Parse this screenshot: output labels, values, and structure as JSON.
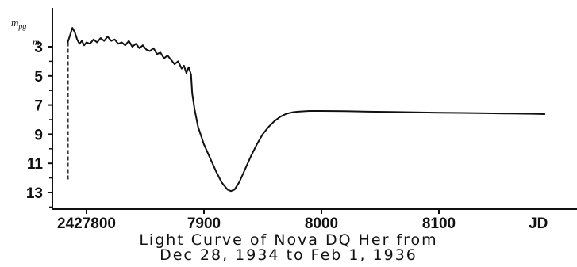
{
  "chart_data": {
    "type": "line",
    "title_lines": [
      "Light Curve of Nova DQ Her from",
      "Dec 28, 1934 to Feb 1, 1936"
    ],
    "xlabel": "JD",
    "ylabel": "m_pg",
    "ylabel_main": "m",
    "ylabel_sub": "pg",
    "y_unit_mark": "m",
    "xlim": [
      27800,
      8190
    ],
    "xlim_data": [
      27780,
      28190
    ],
    "ylim_inverted": [
      1.1,
      14.3
    ],
    "y_reversed": true,
    "x_ticks": [
      {
        "value": 27800,
        "label": "2427800"
      },
      {
        "value": 27900,
        "label": "7900"
      },
      {
        "value": 28000,
        "label": "8000"
      },
      {
        "value": 28100,
        "label": "8100"
      }
    ],
    "y_ticks": [
      {
        "value": 3,
        "label": "3"
      },
      {
        "value": 5,
        "label": "5"
      },
      {
        "value": 7,
        "label": "7"
      },
      {
        "value": 9,
        "label": "9"
      },
      {
        "value": 11,
        "label": "11"
      },
      {
        "value": 13,
        "label": "13"
      }
    ],
    "pre_discovery_dashed": [
      {
        "x": 27784,
        "y": 12.1
      },
      {
        "x": 27784,
        "y": 2.7
      }
    ],
    "series": [
      {
        "style": "solid",
        "points": [
          [
            27784,
            2.7
          ],
          [
            27786,
            2.2
          ],
          [
            27788,
            1.7
          ],
          [
            27790,
            2.0
          ],
          [
            27792,
            2.5
          ],
          [
            27794,
            2.8
          ],
          [
            27796,
            2.6
          ],
          [
            27798,
            2.9
          ],
          [
            27800,
            2.7
          ],
          [
            27803,
            2.8
          ],
          [
            27806,
            2.5
          ],
          [
            27809,
            2.7
          ],
          [
            27812,
            2.4
          ],
          [
            27815,
            2.6
          ],
          [
            27818,
            2.3
          ],
          [
            27821,
            2.6
          ],
          [
            27824,
            2.5
          ],
          [
            27827,
            2.8
          ],
          [
            27830,
            2.7
          ],
          [
            27833,
            2.9
          ],
          [
            27836,
            2.6
          ],
          [
            27839,
            3.0
          ],
          [
            27842,
            2.8
          ],
          [
            27845,
            3.1
          ],
          [
            27848,
            2.9
          ],
          [
            27851,
            3.2
          ],
          [
            27854,
            3.3
          ],
          [
            27857,
            3.1
          ],
          [
            27860,
            3.5
          ],
          [
            27863,
            3.4
          ],
          [
            27866,
            3.8
          ],
          [
            27869,
            3.6
          ],
          [
            27872,
            3.9
          ],
          [
            27875,
            4.2
          ],
          [
            27878,
            4.0
          ],
          [
            27881,
            4.5
          ],
          [
            27883,
            4.3
          ],
          [
            27885,
            4.8
          ],
          [
            27887,
            4.4
          ],
          [
            27889,
            4.9
          ],
          [
            27890,
            6.2
          ],
          [
            27892,
            7.3
          ],
          [
            27895,
            8.5
          ],
          [
            27900,
            9.7
          ],
          [
            27905,
            10.6
          ],
          [
            27910,
            11.5
          ],
          [
            27915,
            12.3
          ],
          [
            27920,
            12.8
          ],
          [
            27923,
            12.9
          ],
          [
            27926,
            12.8
          ],
          [
            27930,
            12.3
          ],
          [
            27935,
            11.4
          ],
          [
            27940,
            10.5
          ],
          [
            27945,
            9.7
          ],
          [
            27950,
            9.0
          ],
          [
            27955,
            8.5
          ],
          [
            27960,
            8.1
          ],
          [
            27965,
            7.8
          ],
          [
            27970,
            7.6
          ],
          [
            27975,
            7.5
          ],
          [
            27980,
            7.45
          ],
          [
            27990,
            7.4
          ],
          [
            28000,
            7.4
          ],
          [
            28020,
            7.42
          ],
          [
            28040,
            7.45
          ],
          [
            28060,
            7.47
          ],
          [
            28080,
            7.5
          ],
          [
            28100,
            7.52
          ],
          [
            28120,
            7.54
          ],
          [
            28140,
            7.56
          ],
          [
            28160,
            7.58
          ],
          [
            28180,
            7.6
          ],
          [
            28190,
            7.62
          ]
        ]
      }
    ]
  }
}
